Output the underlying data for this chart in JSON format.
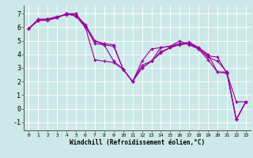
{
  "xlabel": "Windchill (Refroidissement éolien,°C)",
  "ylabel": "",
  "background_color": "#cce8e8",
  "line_color": "#990099",
  "xlim": [
    -0.5,
    23.5
  ],
  "ylim": [
    -1.6,
    7.6
  ],
  "xticks": [
    0,
    1,
    2,
    3,
    4,
    5,
    6,
    7,
    8,
    9,
    10,
    11,
    12,
    13,
    14,
    15,
    16,
    17,
    18,
    19,
    20,
    21,
    22,
    23
  ],
  "yticks": [
    -1,
    0,
    1,
    2,
    3,
    4,
    5,
    6,
    7
  ],
  "lines": [
    [
      0,
      5.9,
      1,
      6.5,
      2,
      6.6,
      3,
      6.7,
      4,
      7.0,
      5,
      7.0,
      6,
      6.1,
      7,
      4.8,
      8,
      4.7,
      9,
      4.6,
      10,
      2.9,
      11,
      2.0,
      12,
      3.5,
      13,
      4.4,
      14,
      4.5,
      15,
      4.6,
      16,
      4.8,
      17,
      4.8,
      18,
      4.5,
      19,
      3.9,
      20,
      3.8,
      21,
      2.6,
      22,
      0.5,
      23,
      0.5
    ],
    [
      0,
      5.9,
      1,
      6.5,
      2,
      6.6,
      3,
      6.8,
      4,
      6.9,
      5,
      7.0,
      6,
      6.0,
      7,
      3.6,
      8,
      3.5,
      9,
      3.4,
      10,
      2.9,
      11,
      2.0,
      12,
      3.0,
      13,
      3.5,
      14,
      4.1,
      15,
      4.5,
      16,
      4.7,
      17,
      4.8,
      18,
      4.4,
      19,
      3.6,
      20,
      2.7,
      21,
      2.6,
      22,
      -0.8,
      23,
      0.5
    ],
    [
      0,
      5.9,
      1,
      6.5,
      2,
      6.5,
      3,
      6.7,
      4,
      7.0,
      5,
      6.8,
      6,
      6.0,
      7,
      5.0,
      8,
      4.7,
      9,
      3.5,
      10,
      2.9,
      11,
      2.0,
      12,
      3.2,
      13,
      3.5,
      14,
      4.5,
      15,
      4.6,
      16,
      5.0,
      17,
      4.7,
      18,
      4.4,
      19,
      3.8,
      20,
      3.5,
      21,
      2.7,
      22,
      -0.8,
      23,
      0.5
    ],
    [
      0,
      5.9,
      1,
      6.6,
      2,
      6.6,
      3,
      6.7,
      4,
      7.0,
      5,
      6.9,
      6,
      6.2,
      7,
      5.0,
      8,
      4.8,
      9,
      4.7,
      10,
      2.9,
      11,
      2.0,
      12,
      3.0,
      13,
      3.5,
      14,
      4.2,
      15,
      4.5,
      16,
      4.8,
      17,
      4.9,
      18,
      4.5,
      19,
      4.0,
      20,
      2.7,
      21,
      2.7,
      22,
      -0.8,
      23,
      0.5
    ]
  ],
  "xtick_fontsize": 4.5,
  "ytick_fontsize": 6.0,
  "xlabel_fontsize": 5.5,
  "grid_color": "#ffffff",
  "grid_linewidth": 0.6,
  "line_width": 0.8,
  "marker_size": 3.5
}
